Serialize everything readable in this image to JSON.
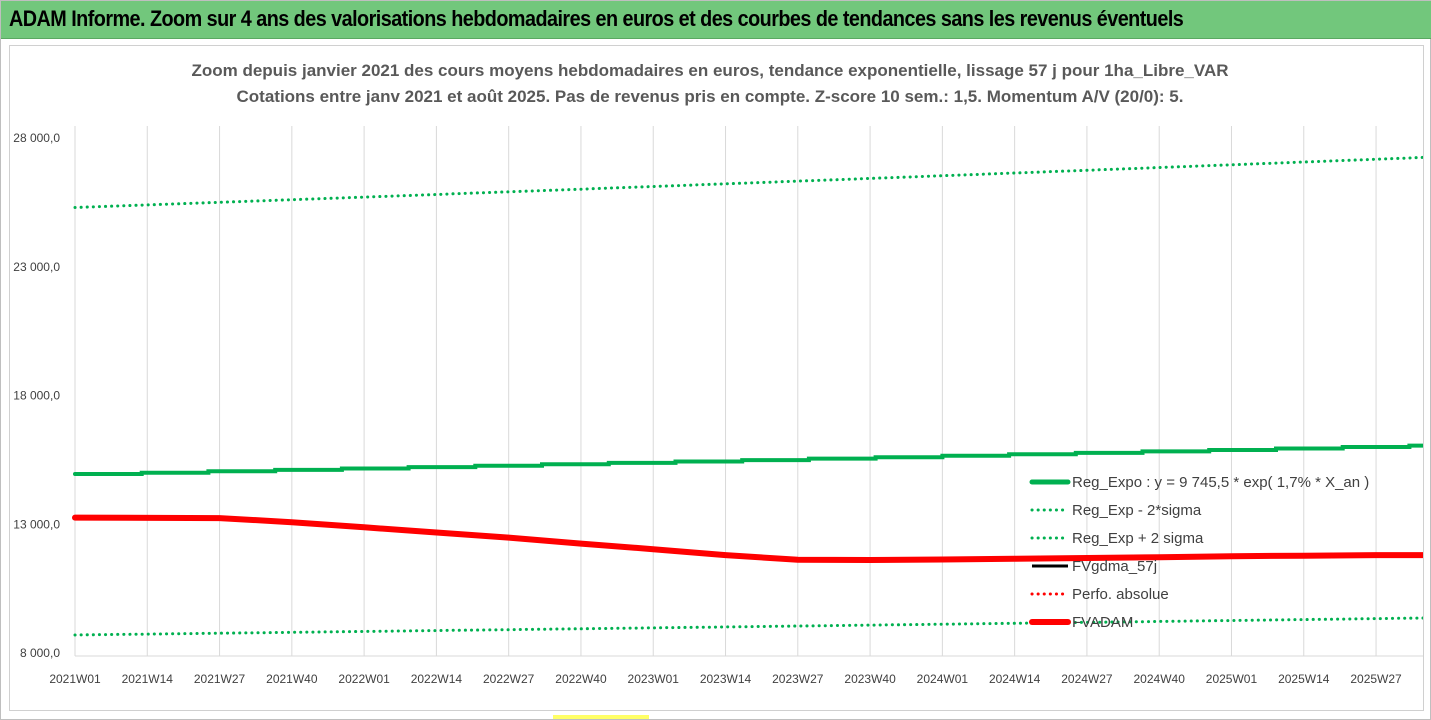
{
  "banner": {
    "title": "ADAM Informe. Zoom sur 4 ans des valorisations hebdomadaires en euros et des courbes de tendances sans les revenus éventuels"
  },
  "colors": {
    "banner_bg": "#72c77c",
    "reg_expo": "#00b050",
    "reg_band": "#00b050",
    "fvgdma": "#000000",
    "perfo": "#ff0000",
    "fvadam": "#ff0000",
    "grid": "#d9d9d9"
  },
  "chart_data": {
    "type": "line",
    "title": "Zoom depuis janvier 2021 des cours moyens hebdomadaires en euros, tendance exponentielle, lissage 57 j pour 1ha_Libre_VAR",
    "subtitle": "Cotations entre janv 2021 et août 2025.  Pas de revenus pris en compte. Z-score 10 sem.: 1,5. Momentum A/V (20/0): 5.",
    "x_tick_labels": [
      "2021W01",
      "2021W14",
      "2021W27",
      "2021W40",
      "2022W01",
      "2022W14",
      "2022W27",
      "2022W40",
      "2023W01",
      "2023W14",
      "2023W27",
      "2023W40",
      "2024W01",
      "2024W14",
      "2024W27",
      "2024W40",
      "2025W01",
      "2025W14",
      "2025W27"
    ],
    "x_tick_week_index": [
      0,
      13,
      26,
      39,
      52,
      65,
      78,
      91,
      104,
      117,
      130,
      143,
      156,
      169,
      182,
      195,
      208,
      221,
      234
    ],
    "x_last_week_index": 243,
    "y_ticks": [
      "8 000,0",
      "13 000,0",
      "18 000,0",
      "23 000,0",
      "28 000,0"
    ],
    "y_tick_values": [
      8000,
      13000,
      18000,
      23000,
      28000
    ],
    "ylim": [
      8000,
      28000
    ],
    "grid": "vertical",
    "legend_position": "right",
    "series": [
      {
        "name": "Reg_Expo : y = 9 745,5 * exp( 1,7% *  X_an )",
        "style": "solid-thick",
        "color": "#00b050",
        "x": [
          0,
          243
        ],
        "y": [
          14950,
          16070
        ]
      },
      {
        "name": "Reg_Exp - 2*sigma",
        "style": "dotted",
        "color": "#00b050",
        "x": [
          0,
          243
        ],
        "y": [
          8700,
          9360
        ]
      },
      {
        "name": "Reg_Exp + 2 sigma",
        "style": "dotted",
        "color": "#00b050",
        "x": [
          0,
          243
        ],
        "y": [
          25300,
          27250
        ]
      },
      {
        "name": "FVgdma_57j",
        "style": "solid",
        "color": "#000000",
        "x": [],
        "y": []
      },
      {
        "name": "Perfo. absolue",
        "style": "dotted",
        "color": "#ff0000",
        "x": [],
        "y": []
      },
      {
        "name": "FVADAM",
        "style": "solid-thick",
        "color": "#ff0000",
        "x": [
          0,
          26,
          39,
          52,
          65,
          78,
          91,
          104,
          117,
          130,
          143,
          156,
          169,
          182,
          195,
          208,
          221,
          234,
          243
        ],
        "y": [
          13260,
          13240,
          13080,
          12880,
          12680,
          12480,
          12250,
          12030,
          11800,
          11620,
          11610,
          11630,
          11660,
          11690,
          11720,
          11760,
          11780,
          11800,
          11800
        ]
      }
    ]
  }
}
